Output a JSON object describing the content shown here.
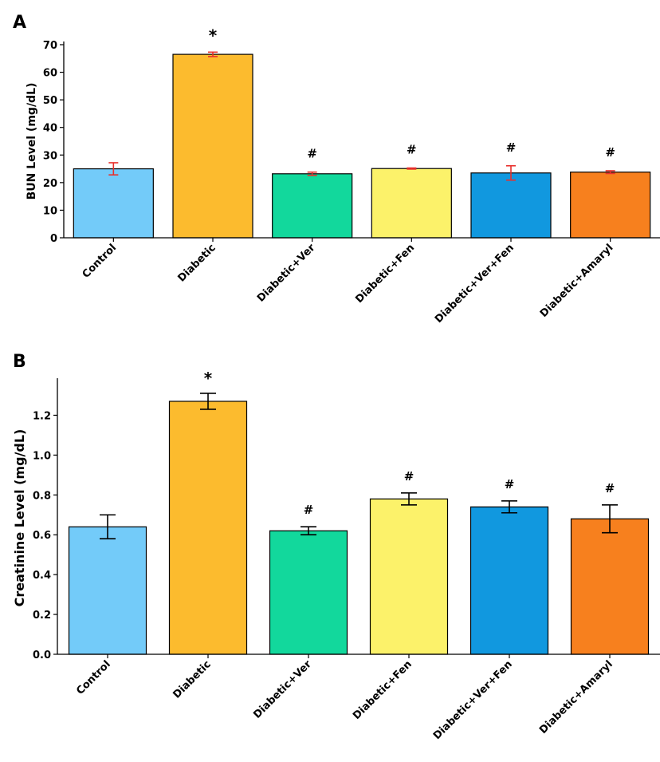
{
  "colors": [
    "#73cbf9",
    "#fcbb2e",
    "#12d89c",
    "#fcf26a",
    "#1198df",
    "#f7801e"
  ],
  "chart_data": [
    {
      "panel": "A",
      "type": "bar",
      "categories": [
        "Control",
        "Diabetic",
        "Diabetic+Ver",
        "Diabetic+Fen",
        "Diabetic+Ver+Fen",
        "Diabetic+Amaryl"
      ],
      "values": [
        25.0,
        66.5,
        23.2,
        25.1,
        23.5,
        23.8
      ],
      "errors": [
        2.2,
        0.8,
        0.6,
        0.2,
        2.6,
        0.5
      ],
      "error_color": "#e8302c",
      "significance": [
        "",
        "*",
        "#",
        "#",
        "#",
        "#"
      ],
      "xlabel": "",
      "ylabel": "BUN Level (mg/dL)",
      "ylim": [
        0,
        70
      ],
      "yticks": [
        0,
        10,
        20,
        30,
        40,
        50,
        60,
        70
      ],
      "ytick_labels": [
        "0",
        "10",
        "20",
        "30",
        "40",
        "50",
        "60",
        "70"
      ],
      "grid": false
    },
    {
      "panel": "B",
      "type": "bar",
      "categories": [
        "Control",
        "Diabetic",
        "Diabetic+Ver",
        "Diabetic+Fen",
        "Diabetic+Ver+Fen",
        "Diabetic+Amaryl"
      ],
      "values": [
        0.64,
        1.27,
        0.62,
        0.78,
        0.74,
        0.68
      ],
      "errors": [
        0.06,
        0.04,
        0.02,
        0.03,
        0.03,
        0.07
      ],
      "error_color": "#000000",
      "significance": [
        "",
        "*",
        "#",
        "#",
        "#",
        "#"
      ],
      "xlabel": "",
      "ylabel": "Creatinine Level (mg/dL)",
      "ylim": [
        0,
        1.37
      ],
      "yticks": [
        0,
        0.2,
        0.4,
        0.6,
        0.8,
        1.0,
        1.2
      ],
      "ytick_labels": [
        "0.0",
        "0.2",
        "0.4",
        "0.6",
        "0.8",
        "1.0",
        "1.2"
      ],
      "grid": false
    }
  ]
}
